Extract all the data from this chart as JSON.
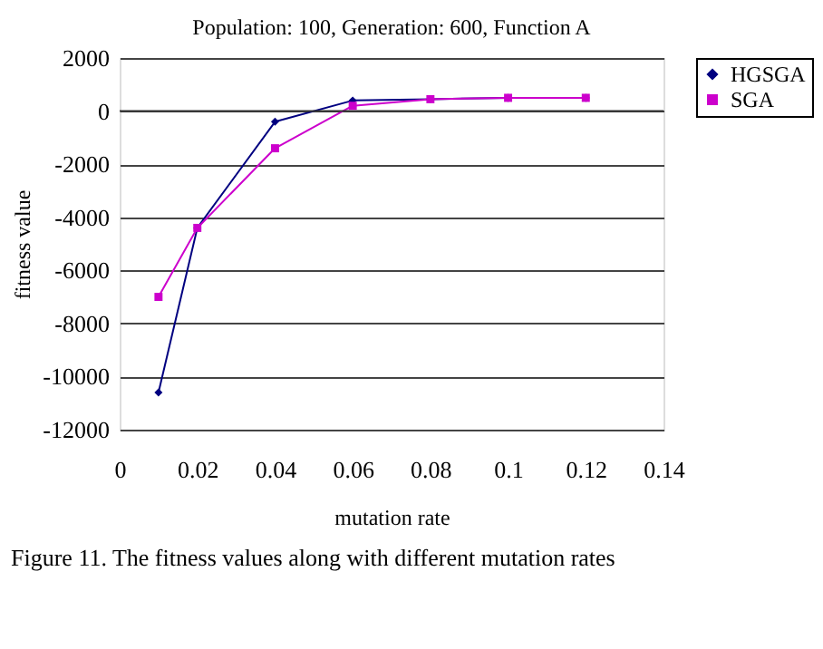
{
  "chart_data": {
    "type": "line",
    "title": "Population: 100, Generation: 600, Function A",
    "xlabel": "mutation rate",
    "ylabel": "fitness value",
    "x": [
      0.01,
      0.02,
      0.04,
      0.06,
      0.08,
      0.1,
      0.12
    ],
    "series": [
      {
        "name": "HGSGA",
        "color": "#000080",
        "marker": "diamond",
        "values": [
          -10600,
          -4400,
          -400,
          400,
          450,
          500,
          500
        ]
      },
      {
        "name": "SGA",
        "color": "#cc00cc",
        "marker": "square",
        "values": [
          -7000,
          -4400,
          -1400,
          200,
          450,
          500,
          500
        ]
      }
    ],
    "xlim": [
      0,
      0.14
    ],
    "xticks": [
      0,
      0.02,
      0.04,
      0.06,
      0.08,
      0.1,
      0.12,
      0.14
    ],
    "ylim": [
      -12000,
      2000
    ],
    "yticks": [
      -12000,
      -10000,
      -8000,
      -6000,
      -4000,
      -2000,
      0,
      2000
    ],
    "grid": "y",
    "legend": "right",
    "annotations": [
      "Figure 11.        The fitness values along with different mutation rates"
    ]
  }
}
